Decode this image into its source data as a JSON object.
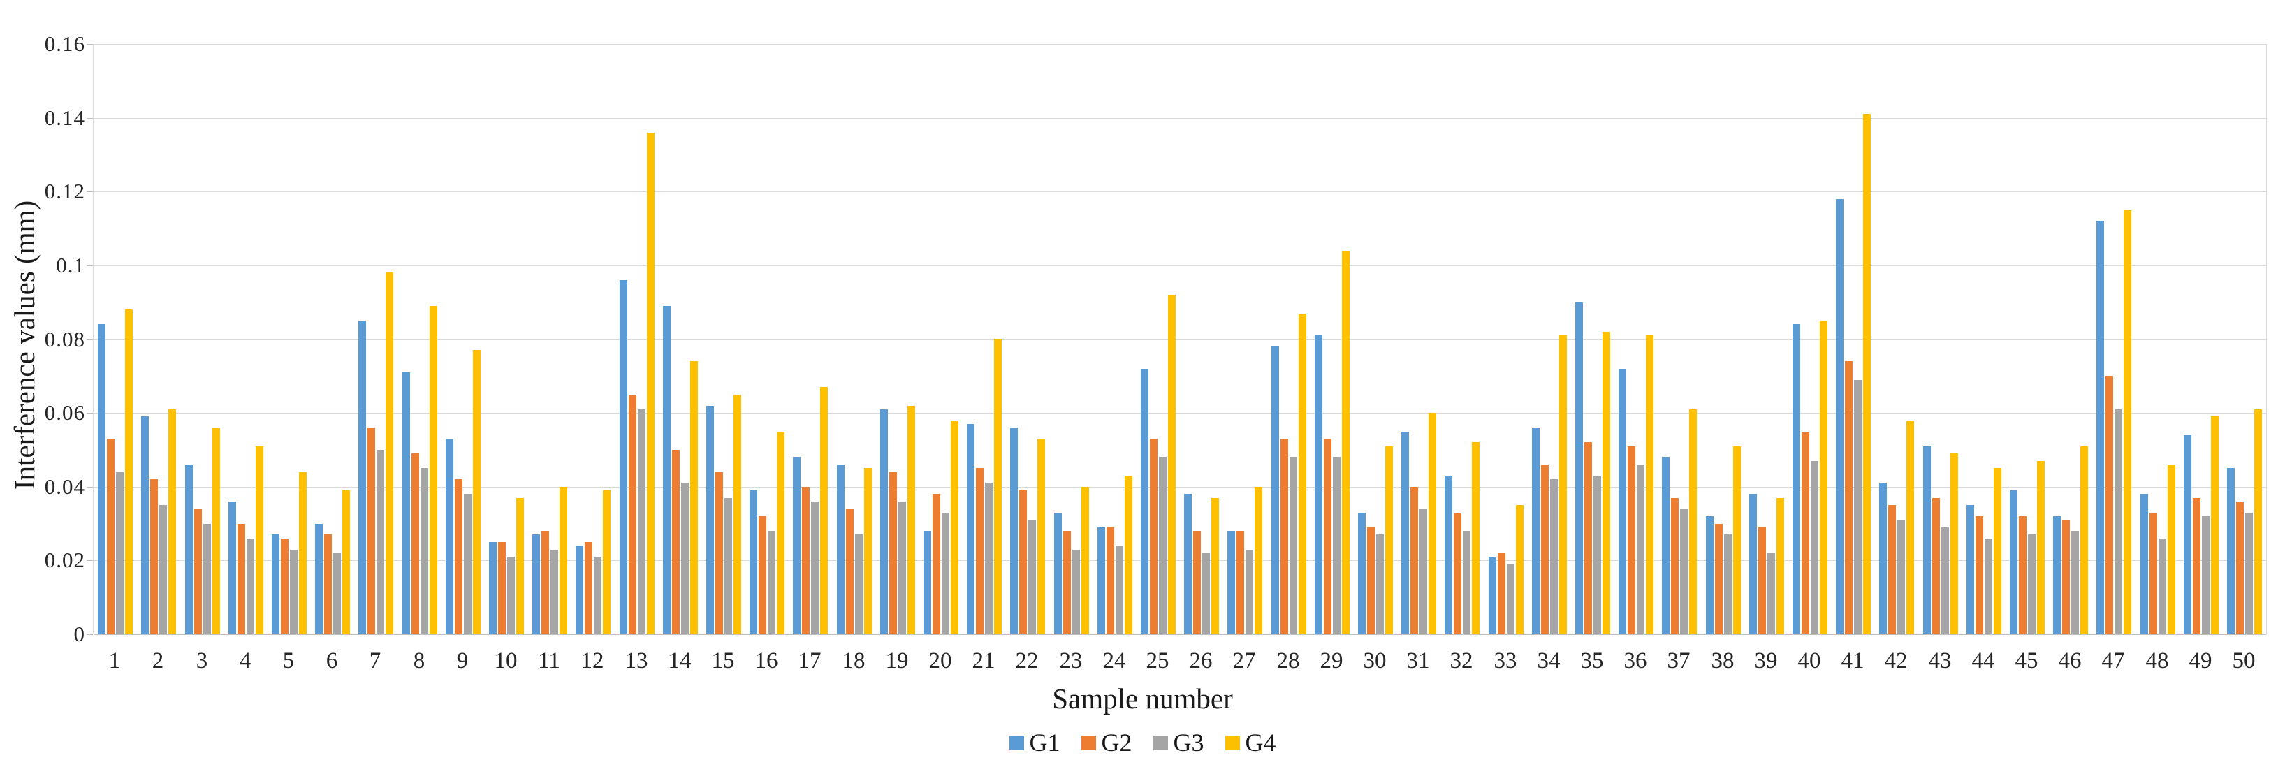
{
  "chart_data": {
    "type": "bar",
    "title": "",
    "xlabel": "Sample number",
    "ylabel": "Interference values (mm)",
    "ylim": [
      0,
      0.16
    ],
    "ytick_step": 0.02,
    "yticks": [
      "0",
      "0.02",
      "0.04",
      "0.06",
      "0.08",
      "0.1",
      "0.12",
      "0.14",
      "0.16"
    ],
    "grid": true,
    "legend_position": "bottom",
    "categories": [
      "1",
      "2",
      "3",
      "4",
      "5",
      "6",
      "7",
      "8",
      "9",
      "10",
      "11",
      "12",
      "13",
      "14",
      "15",
      "16",
      "17",
      "18",
      "19",
      "20",
      "21",
      "22",
      "23",
      "24",
      "25",
      "26",
      "27",
      "28",
      "29",
      "30",
      "31",
      "32",
      "33",
      "34",
      "35",
      "36",
      "37",
      "38",
      "39",
      "40",
      "41",
      "42",
      "43",
      "44",
      "45",
      "46",
      "47",
      "48",
      "49",
      "50"
    ],
    "series": [
      {
        "name": "G1",
        "color": "#5b9bd5",
        "values": [
          0.084,
          0.059,
          0.046,
          0.036,
          0.027,
          0.03,
          0.085,
          0.071,
          0.053,
          0.025,
          0.027,
          0.024,
          0.096,
          0.089,
          0.062,
          0.039,
          0.048,
          0.046,
          0.061,
          0.028,
          0.057,
          0.056,
          0.033,
          0.029,
          0.072,
          0.038,
          0.028,
          0.078,
          0.081,
          0.033,
          0.055,
          0.043,
          0.021,
          0.056,
          0.09,
          0.072,
          0.048,
          0.032,
          0.038,
          0.084,
          0.118,
          0.041,
          0.051,
          0.035,
          0.039,
          0.032,
          0.112,
          0.038,
          0.054,
          0.045
        ]
      },
      {
        "name": "G2",
        "color": "#ed7d31",
        "values": [
          0.053,
          0.042,
          0.034,
          0.03,
          0.026,
          0.027,
          0.056,
          0.049,
          0.042,
          0.025,
          0.028,
          0.025,
          0.065,
          0.05,
          0.044,
          0.032,
          0.04,
          0.034,
          0.044,
          0.038,
          0.045,
          0.039,
          0.028,
          0.029,
          0.053,
          0.028,
          0.028,
          0.053,
          0.053,
          0.029,
          0.04,
          0.033,
          0.022,
          0.046,
          0.052,
          0.051,
          0.037,
          0.03,
          0.029,
          0.055,
          0.074,
          0.035,
          0.037,
          0.032,
          0.032,
          0.031,
          0.07,
          0.033,
          0.037,
          0.036
        ]
      },
      {
        "name": "G3",
        "color": "#a5a5a5",
        "values": [
          0.044,
          0.035,
          0.03,
          0.026,
          0.023,
          0.022,
          0.05,
          0.045,
          0.038,
          0.021,
          0.023,
          0.021,
          0.061,
          0.041,
          0.037,
          0.028,
          0.036,
          0.027,
          0.036,
          0.033,
          0.041,
          0.031,
          0.023,
          0.024,
          0.048,
          0.022,
          0.023,
          0.048,
          0.048,
          0.027,
          0.034,
          0.028,
          0.019,
          0.042,
          0.043,
          0.046,
          0.034,
          0.027,
          0.022,
          0.047,
          0.069,
          0.031,
          0.029,
          0.026,
          0.027,
          0.028,
          0.061,
          0.026,
          0.032,
          0.033
        ]
      },
      {
        "name": "G4",
        "color": "#ffc000",
        "values": [
          0.088,
          0.061,
          0.056,
          0.051,
          0.044,
          0.039,
          0.098,
          0.089,
          0.077,
          0.037,
          0.04,
          0.039,
          0.136,
          0.074,
          0.065,
          0.055,
          0.067,
          0.045,
          0.062,
          0.058,
          0.08,
          0.053,
          0.04,
          0.043,
          0.092,
          0.037,
          0.04,
          0.087,
          0.104,
          0.051,
          0.06,
          0.052,
          0.035,
          0.081,
          0.082,
          0.081,
          0.061,
          0.051,
          0.037,
          0.085,
          0.141,
          0.058,
          0.049,
          0.045,
          0.047,
          0.051,
          0.115,
          0.046,
          0.059,
          0.061
        ]
      }
    ],
    "colors": {
      "gridline": "#d9d9d9",
      "axis_line": "#bfbfbf",
      "text": "#262626"
    }
  }
}
